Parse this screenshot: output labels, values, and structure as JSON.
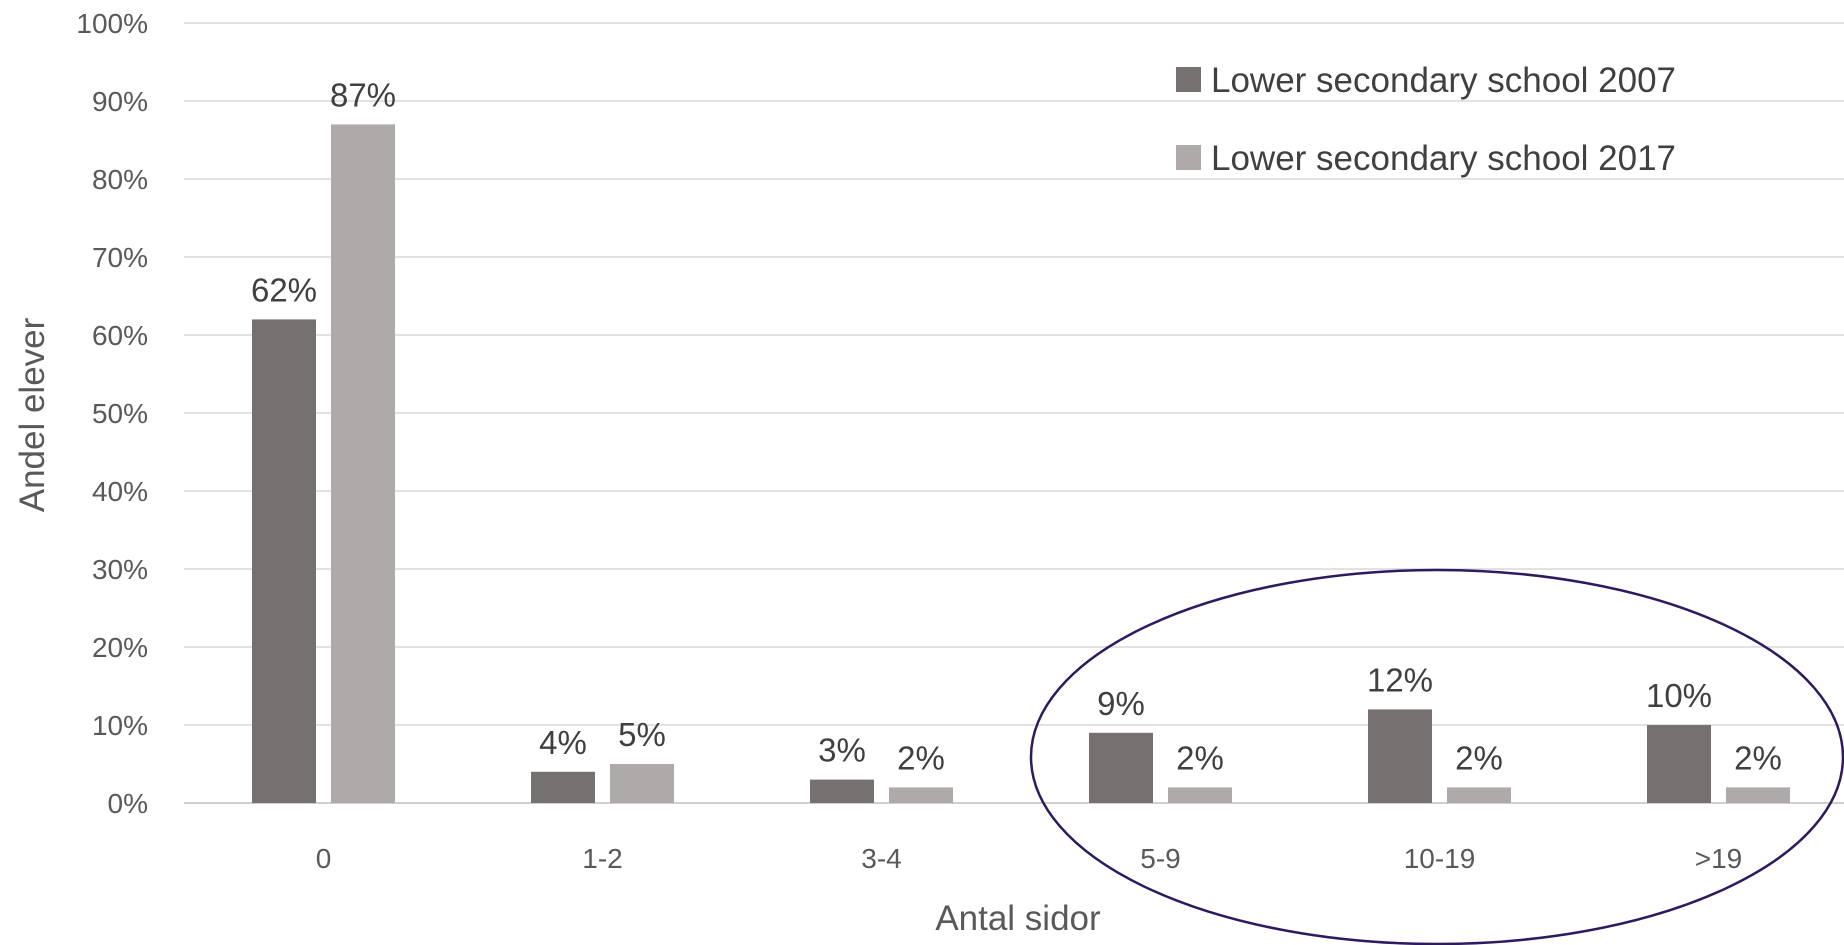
{
  "chart_data": {
    "type": "bar",
    "categories": [
      "0",
      "1-2",
      "3-4",
      "5-9",
      "10-19",
      ">19"
    ],
    "series": [
      {
        "name": "Lower secondary school 2007",
        "values": [
          62,
          4,
          3,
          9,
          12,
          10
        ],
        "labels": [
          "62%",
          "4%",
          "3%",
          "9%",
          "12%",
          "10%"
        ],
        "color": "#767171"
      },
      {
        "name": "Lower secondary school 2017",
        "values": [
          87,
          5,
          2,
          2,
          2,
          2
        ],
        "labels": [
          "87%",
          "5%",
          "2%",
          "2%",
          "2%",
          "2%"
        ],
        "color": "#AEAAAA"
      }
    ],
    "xlabel": "Antal sidor",
    "ylabel": "Andel elever",
    "ylim": [
      0,
      100
    ],
    "yticks": [
      "0%",
      "10%",
      "20%",
      "30%",
      "40%",
      "50%",
      "60%",
      "70%",
      "80%",
      "90%",
      "100%"
    ],
    "grid": true,
    "legend_position": "top-right",
    "annotation": {
      "shape": "ellipse",
      "encloses": [
        "5-9",
        "10-19",
        ">19"
      ],
      "color": "#2E1A5E"
    }
  }
}
